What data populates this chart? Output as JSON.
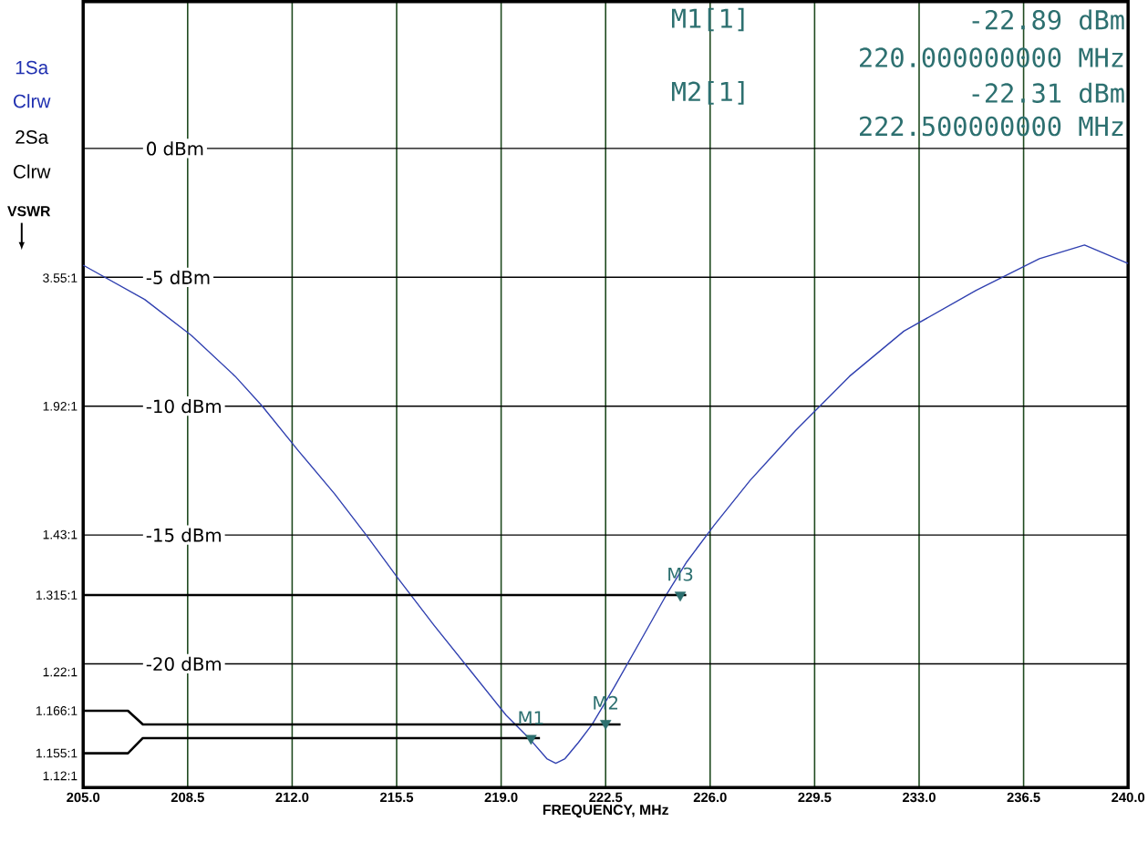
{
  "chart_data": {
    "type": "line",
    "xlabel": "FREQUENCY, MHz",
    "xlim": [
      205,
      240
    ],
    "xticks": [
      {
        "value": 205,
        "label": "205.0"
      },
      {
        "value": 208.5,
        "label": "208.5"
      },
      {
        "value": 212,
        "label": "212.0"
      },
      {
        "value": 215.5,
        "label": "215.5"
      },
      {
        "value": 219,
        "label": "219.0"
      },
      {
        "value": 222.5,
        "label": "222.5"
      },
      {
        "value": 226,
        "label": "226.0"
      },
      {
        "value": 229.5,
        "label": "229.5"
      },
      {
        "value": 233,
        "label": "233.0"
      },
      {
        "value": 236.5,
        "label": "236.5"
      },
      {
        "value": 240,
        "label": "240.0"
      }
    ],
    "ylim": [
      -24.8,
      5.7
    ],
    "yticks": [
      {
        "value": 0,
        "label": "0 dBm"
      },
      {
        "value": -5,
        "label": "-5 dBm"
      },
      {
        "value": -10,
        "label": "-10 dBm"
      },
      {
        "value": -15,
        "label": "-15 dBm"
      },
      {
        "value": -20,
        "label": "-20 dBm"
      }
    ],
    "grid": true,
    "series": [
      {
        "color": "#3040b0",
        "x": [
          205,
          207.06,
          208.63,
          210.09,
          211,
          212.2,
          213.42,
          214.48,
          215.54,
          216.75,
          217.96,
          219.17,
          219.93,
          220.53,
          220.83,
          221.14,
          221.59,
          222.05,
          222.8,
          223.71,
          224.53,
          225.22,
          226.13,
          227.34,
          228.86,
          230.67,
          232.49,
          234.91,
          237.03,
          238.54,
          240
        ],
        "values": [
          -4.53,
          -5.86,
          -7.26,
          -8.84,
          -10.0,
          -11.72,
          -13.4,
          -15.0,
          -16.67,
          -18.5,
          -20.25,
          -22.0,
          -22.88,
          -23.68,
          -23.86,
          -23.68,
          -23.05,
          -22.35,
          -20.88,
          -19.02,
          -17.33,
          -16.04,
          -14.63,
          -12.88,
          -10.95,
          -8.84,
          -7.09,
          -5.51,
          -4.28,
          -3.75,
          -4.46
        ]
      },
      {
        "color": "#000000",
        "x": [
          205,
          225.2
        ],
        "values": [
          -17.33,
          -17.33
        ]
      },
      {
        "color": "#000000",
        "x": [
          205,
          206.5,
          207,
          223
        ],
        "values": [
          -21.82,
          -21.82,
          -22.35,
          -22.35
        ]
      },
      {
        "color": "#000000",
        "x": [
          205,
          206.5,
          207,
          220.3
        ],
        "values": [
          -23.47,
          -23.47,
          -22.88,
          -22.88
        ]
      },
      {
        "type": "scatter",
        "marker": "triangle",
        "color": "#2d7070",
        "x": [
          220.0,
          222.5,
          225.0
        ],
        "values": [
          -22.89,
          -22.31,
          -17.33
        ]
      }
    ],
    "annotations": [
      "1Sa",
      "Clrw",
      "2Sa",
      "Clrw",
      "M1[1]",
      "-22.89 dBm",
      "220.000000000 MHz",
      "M2[1]",
      "-22.31 dBm",
      "222.500000000 MHz",
      "VSWR",
      "3.55:1",
      "1.92:1",
      "1.43:1",
      "1.315:1",
      "1.22:1",
      "1.166:1",
      "1.155:1",
      "1.12:1",
      {
        "text": "M1",
        "x": 220.0,
        "y": -22.89
      },
      {
        "text": "M2",
        "x": 222.5,
        "y": -22.31
      },
      {
        "text": "M3",
        "x": 225.0,
        "y": -17.33
      }
    ]
  }
}
